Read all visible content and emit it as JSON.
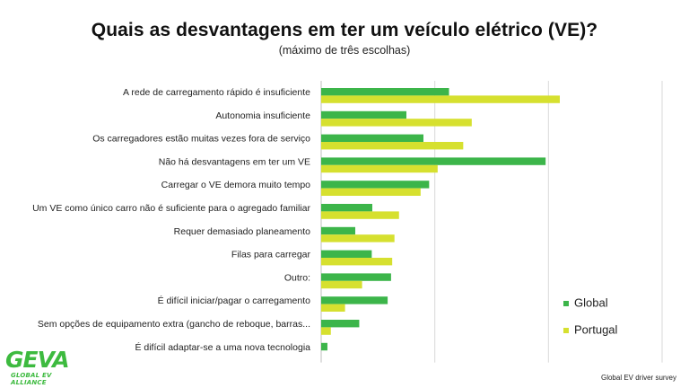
{
  "title": "Quais as desvantagens em ter um veículo elétrico (VE)?",
  "subtitle": "(máximo de três escolhas)",
  "source": "Global EV driver survey",
  "logo": {
    "word": "GEVA",
    "sub": "GLOBAL EV ALLIANCE"
  },
  "colors": {
    "global": "#3cb54a",
    "portugal": "#d6e02f",
    "grid": "#d9d9d9",
    "logo": "#3dba3f"
  },
  "chart_data": {
    "type": "bar",
    "orientation": "horizontal",
    "categories": [
      "A rede de carregamento rápido é insuficiente",
      "Autonomia insuficiente",
      "Os carregadores estão muitas vezes fora de serviço",
      "Não há desvantagens em ter um VE",
      "Carregar o VE demora muito tempo",
      "Um VE como único carro não é suficiente para o agregado familiar",
      "Requer demasiado planeamento",
      "Filas para carregar",
      "Outro:",
      "É difícil iniciar/pagar o carregamento",
      "Sem opções de equipamento extra (gancho de reboque, barras...",
      "É difícil adaptar-se a uma nova tecnologia"
    ],
    "series": [
      {
        "name": "Global",
        "values": [
          22.5,
          15.0,
          18.0,
          39.5,
          19.0,
          9.0,
          6.0,
          8.9,
          12.3,
          11.7,
          6.7,
          1.1
        ]
      },
      {
        "name": "Portugal",
        "values": [
          42.0,
          26.5,
          25.0,
          20.5,
          17.5,
          13.7,
          12.9,
          12.5,
          7.2,
          4.2,
          1.7,
          0.0
        ]
      }
    ],
    "xlim": [
      0,
      60
    ],
    "grid": true,
    "legend_position": "right"
  }
}
